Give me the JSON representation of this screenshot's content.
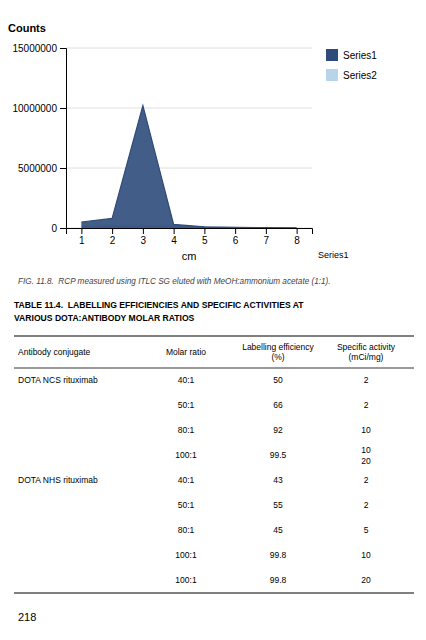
{
  "chart_data": {
    "type": "area",
    "x_label": "cm",
    "y_label": "Counts",
    "annotation": "Series1",
    "x": [
      1,
      2,
      3,
      4,
      5,
      6,
      7,
      8
    ],
    "series": [
      {
        "name": "Series1",
        "color": "#2E4B7A",
        "values": [
          500000,
          800000,
          10200000,
          300000,
          100000,
          50000,
          30000,
          20000
        ]
      },
      {
        "name": "Series2",
        "color": "#B8D4E8",
        "values": [
          150000,
          200000,
          250000,
          150000,
          80000,
          40000,
          20000,
          10000
        ]
      }
    ],
    "xlim": [
      0.5,
      8.5
    ],
    "xticks": [
      1,
      2,
      3,
      4,
      5,
      6,
      7,
      8
    ],
    "ylim": [
      0,
      15000000
    ],
    "yticks": [
      0,
      5000000,
      10000000,
      15000000
    ],
    "grid": true,
    "legend": "right"
  },
  "caption": "FIG. 11.8.  RCP measured using ITLC SG eluted with MeOH:ammonium acetate (1:1).",
  "table": {
    "title": [
      "TABLE 11.4.  LABELLING EFFICIENCIES AND SPECIFIC ACTIVITIES AT",
      "VARIOUS DOTA:ANTIBODY MOLAR RATIOS"
    ],
    "headers": [
      "Antibody conjugate",
      "Molar ratio",
      "Labelling efficiency\n(%)",
      "Specific activity\n(mCi/mg)"
    ],
    "rows": [
      [
        "DOTA NCS rituximab",
        "40:1",
        "50",
        "2"
      ],
      [
        null,
        "50:1",
        "66",
        "2"
      ],
      [
        null,
        "80:1",
        "92",
        "10"
      ],
      [
        null,
        "100:1",
        "99.5",
        "10\n20"
      ],
      [
        "DOTA NHS rituximab",
        "40:1",
        "43",
        "2"
      ],
      [
        null,
        "50:1",
        "55",
        "2"
      ],
      [
        null,
        "80:1",
        "45",
        "5"
      ],
      [
        null,
        "100:1",
        "99.8",
        "10"
      ],
      [
        null,
        "100:1",
        "99.8",
        "20"
      ]
    ]
  },
  "page_number": "218"
}
